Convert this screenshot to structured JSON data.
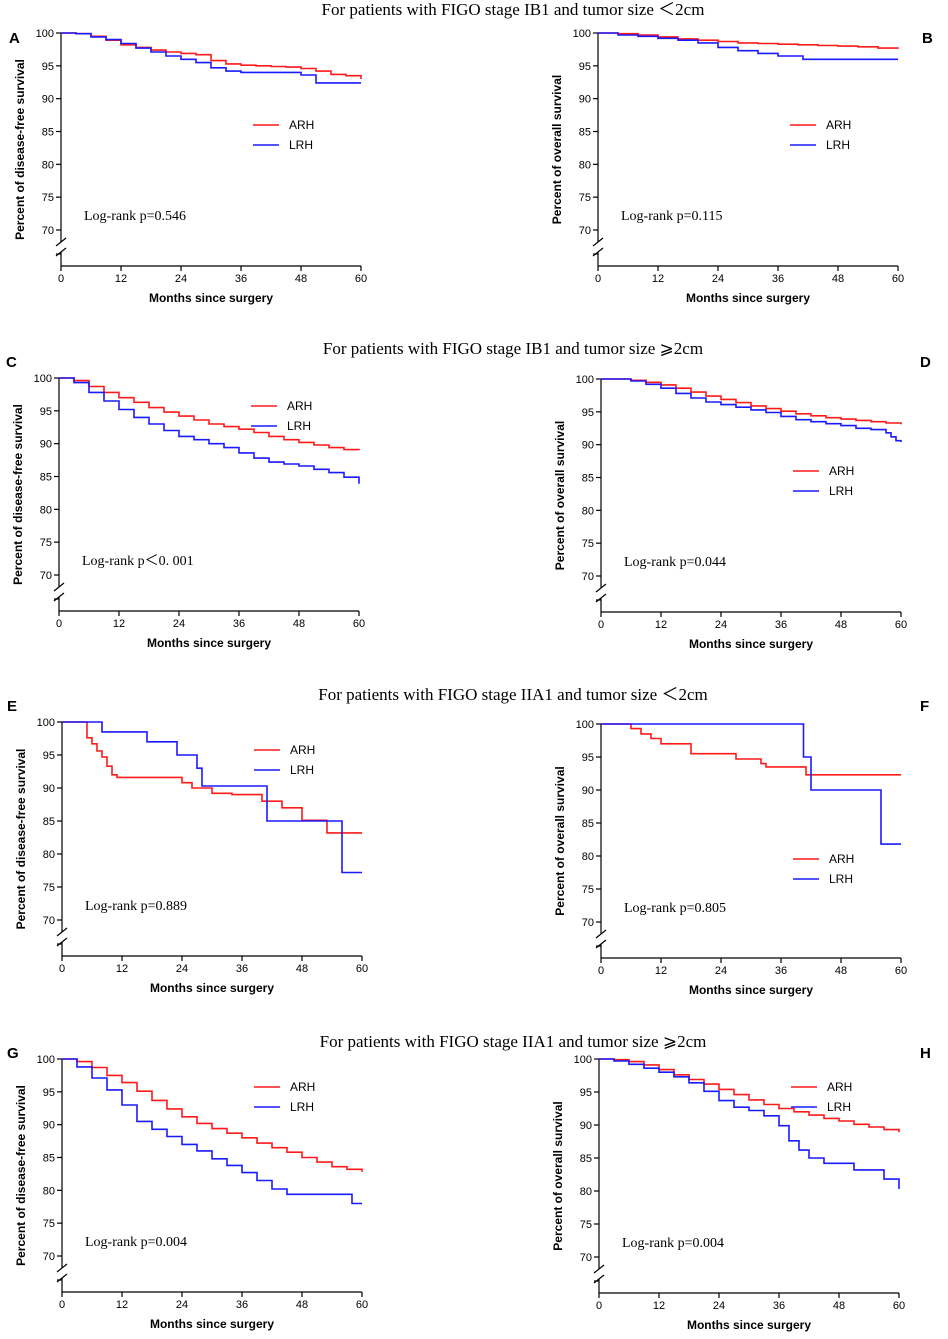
{
  "figure": {
    "row_titles": [
      "For patients with FIGO stage IB1 and tumor size ＜2cm",
      "For patients with FIGO stage IB1 and tumor size ⩾2cm",
      "For patients with FIGO stage IIA1 and tumor size ＜2cm",
      "For patients with FIGO stage IIA1 and tumor size ⩾2cm"
    ],
    "colors": {
      "ARH": "#ff1a1a",
      "LRH": "#1a1aff",
      "axis": "#000000"
    }
  },
  "chart_data": [
    {
      "panel": "A",
      "type": "line",
      "ylabel": "Percent of disease-free survival",
      "xlabel": "Months since surgery",
      "xlim": [
        0,
        60
      ],
      "xticks": [
        0,
        12,
        24,
        36,
        48,
        60
      ],
      "ylim": [
        70,
        100
      ],
      "yticks": [
        70,
        75,
        80,
        85,
        90,
        95,
        100
      ],
      "axis_break": true,
      "legend": [
        "ARH",
        "LRH"
      ],
      "legend_position": "middle-right",
      "annotation": "Log-rank p=0.546",
      "series": [
        {
          "name": "ARH",
          "x": [
            0,
            3,
            6,
            9,
            12,
            15,
            18,
            21,
            24,
            27,
            30,
            33,
            36,
            39,
            42,
            45,
            48,
            51,
            54,
            57,
            60
          ],
          "y": [
            100,
            99.9,
            99.5,
            98.9,
            98.2,
            97.8,
            97.4,
            97.1,
            96.9,
            96.7,
            95.8,
            95.3,
            95.1,
            95.0,
            94.9,
            94.8,
            94.6,
            94.2,
            93.7,
            93.5,
            93.0
          ]
        },
        {
          "name": "LRH",
          "x": [
            0,
            3,
            6,
            9,
            12,
            15,
            18,
            21,
            24,
            27,
            30,
            33,
            36,
            39,
            42,
            45,
            48,
            50,
            51,
            54,
            57,
            60
          ],
          "y": [
            100,
            99.9,
            99.4,
            99.0,
            98.4,
            97.7,
            97.1,
            96.5,
            96.0,
            95.5,
            94.7,
            94.2,
            94.0,
            94.0,
            94.0,
            94.0,
            93.6,
            93.6,
            92.4,
            92.4,
            92.4,
            92.4
          ]
        }
      ]
    },
    {
      "panel": "B",
      "type": "line",
      "ylabel": "Percent of overall survival",
      "xlabel": "Months since surgery",
      "xlim": [
        0,
        60
      ],
      "xticks": [
        0,
        12,
        24,
        36,
        48,
        60
      ],
      "ylim": [
        70,
        100
      ],
      "yticks": [
        70,
        75,
        80,
        85,
        90,
        95,
        100
      ],
      "axis_break": true,
      "legend": [
        "ARH",
        "LRH"
      ],
      "legend_position": "middle-right",
      "annotation": "Log-rank p=0.115",
      "series": [
        {
          "name": "ARH",
          "x": [
            0,
            4,
            8,
            12,
            16,
            20,
            24,
            28,
            32,
            36,
            40,
            44,
            48,
            52,
            56,
            60
          ],
          "y": [
            100,
            99.9,
            99.7,
            99.4,
            99.1,
            98.9,
            98.7,
            98.5,
            98.4,
            98.3,
            98.2,
            98.1,
            98.0,
            97.9,
            97.7,
            97.6
          ]
        },
        {
          "name": "LRH",
          "x": [
            0,
            4,
            8,
            12,
            16,
            20,
            24,
            28,
            32,
            36,
            40,
            41,
            44,
            48,
            52,
            56,
            60
          ],
          "y": [
            100,
            99.7,
            99.5,
            99.2,
            98.9,
            98.5,
            97.8,
            97.3,
            96.9,
            96.5,
            96.5,
            96.0,
            96.0,
            96.0,
            96.0,
            96.0,
            96.0
          ]
        }
      ]
    },
    {
      "panel": "C",
      "type": "line",
      "ylabel": "Percent of disease-free survival",
      "xlabel": "Months since surgery",
      "xlim": [
        0,
        60
      ],
      "xticks": [
        0,
        12,
        24,
        36,
        48,
        60
      ],
      "ylim": [
        70,
        100
      ],
      "yticks": [
        70,
        75,
        80,
        85,
        90,
        95,
        100
      ],
      "axis_break": true,
      "legend": [
        "ARH",
        "LRH"
      ],
      "legend_position": "top-right",
      "annotation": "Log-rank p＜0. 001",
      "series": [
        {
          "name": "ARH",
          "x": [
            0,
            3,
            6,
            9,
            12,
            15,
            18,
            21,
            24,
            27,
            30,
            33,
            36,
            39,
            42,
            45,
            48,
            51,
            54,
            57,
            60
          ],
          "y": [
            100,
            99.6,
            98.7,
            97.8,
            97.0,
            96.3,
            95.5,
            94.8,
            94.2,
            93.6,
            93.0,
            92.6,
            92.2,
            91.7,
            91.1,
            90.6,
            90.2,
            89.8,
            89.4,
            89.1,
            89.0
          ]
        },
        {
          "name": "LRH",
          "x": [
            0,
            3,
            6,
            9,
            12,
            15,
            18,
            21,
            24,
            27,
            30,
            33,
            36,
            39,
            42,
            45,
            48,
            51,
            54,
            57,
            59,
            60
          ],
          "y": [
            100,
            99.3,
            97.8,
            96.5,
            95.2,
            94.0,
            93.0,
            92.0,
            91.1,
            90.6,
            90.0,
            89.4,
            88.6,
            87.8,
            87.2,
            86.9,
            86.6,
            86.1,
            85.6,
            84.9,
            84.9,
            83.9
          ]
        }
      ]
    },
    {
      "panel": "D",
      "type": "line",
      "ylabel": "Percent of overall survival",
      "xlabel": "Months since surgery",
      "xlim": [
        0,
        60
      ],
      "xticks": [
        0,
        12,
        24,
        36,
        48,
        60
      ],
      "ylim": [
        70,
        100
      ],
      "yticks": [
        70,
        75,
        80,
        85,
        90,
        95,
        100
      ],
      "axis_break": true,
      "legend": [
        "ARH",
        "LRH"
      ],
      "legend_position": "middle-right",
      "annotation": "Log-rank p=0.044",
      "series": [
        {
          "name": "ARH",
          "x": [
            0,
            3,
            6,
            9,
            12,
            15,
            18,
            21,
            24,
            27,
            30,
            33,
            36,
            39,
            42,
            45,
            48,
            51,
            54,
            57,
            60
          ],
          "y": [
            100,
            100,
            99.8,
            99.5,
            99.1,
            98.6,
            98.0,
            97.4,
            96.9,
            96.4,
            95.9,
            95.5,
            95.1,
            94.7,
            94.4,
            94.1,
            93.9,
            93.7,
            93.5,
            93.3,
            93.1
          ]
        },
        {
          "name": "LRH",
          "x": [
            0,
            3,
            6,
            9,
            12,
            15,
            18,
            21,
            24,
            27,
            30,
            33,
            36,
            39,
            42,
            45,
            48,
            51,
            54,
            56,
            57,
            58,
            59,
            60
          ],
          "y": [
            100,
            100,
            99.7,
            99.2,
            98.6,
            97.8,
            97.1,
            96.5,
            96.1,
            95.7,
            95.3,
            94.9,
            94.3,
            93.8,
            93.5,
            93.2,
            92.9,
            92.5,
            92.3,
            92.3,
            91.8,
            91.2,
            90.6,
            90.4
          ]
        }
      ]
    },
    {
      "panel": "E",
      "type": "line",
      "ylabel": "Percent of disease-free survival",
      "xlabel": "Months since surgery",
      "xlim": [
        0,
        60
      ],
      "xticks": [
        0,
        12,
        24,
        36,
        48,
        60
      ],
      "ylim": [
        70,
        100
      ],
      "yticks": [
        70,
        75,
        80,
        85,
        90,
        95,
        100
      ],
      "axis_break": true,
      "legend": [
        "ARH",
        "LRH"
      ],
      "legend_position": "top-right",
      "annotation": "Log-rank p=0.889",
      "series": [
        {
          "name": "ARH",
          "x": [
            0,
            5,
            6,
            7,
            8,
            9,
            10,
            11,
            12,
            18,
            24,
            26,
            30,
            34,
            40,
            44,
            48,
            50,
            53,
            60
          ],
          "y": [
            100,
            97.6,
            96.7,
            95.6,
            94.7,
            93.3,
            92.0,
            91.6,
            91.6,
            91.6,
            90.8,
            90.0,
            89.2,
            89.0,
            88.0,
            87.0,
            85.1,
            85.1,
            83.2,
            83.2
          ]
        },
        {
          "name": "LRH",
          "x": [
            0,
            7,
            8,
            16,
            17,
            22,
            23,
            27,
            28,
            35,
            40,
            41,
            55,
            56,
            60
          ],
          "y": [
            100,
            100,
            98.5,
            98.5,
            97.0,
            97.0,
            95.0,
            93.0,
            90.3,
            90.3,
            90.3,
            85.0,
            85.0,
            77.2,
            77.2
          ]
        }
      ]
    },
    {
      "panel": "F",
      "type": "line",
      "ylabel": "Percent of overall survival",
      "xlabel": "Months since surgery",
      "xlim": [
        0,
        60
      ],
      "xticks": [
        0,
        12,
        24,
        36,
        48,
        60
      ],
      "ylim": [
        70,
        100
      ],
      "yticks": [
        70,
        75,
        80,
        85,
        90,
        95,
        100
      ],
      "axis_break": true,
      "legend": [
        "ARH",
        "LRH"
      ],
      "legend_position": "bottom-right",
      "annotation": "Log-rank p=0.805",
      "series": [
        {
          "name": "ARH",
          "x": [
            0,
            6,
            8,
            10,
            12,
            17,
            18,
            24,
            27,
            30,
            32,
            33,
            41,
            44,
            60
          ],
          "y": [
            100,
            99.3,
            98.5,
            97.8,
            97.0,
            97.0,
            95.5,
            95.5,
            94.7,
            94.7,
            94.0,
            93.5,
            92.3,
            92.3,
            92.3
          ]
        },
        {
          "name": "LRH",
          "x": [
            0,
            40,
            40.5,
            41,
            42,
            55,
            56,
            60
          ],
          "y": [
            100,
            100,
            95.0,
            95.0,
            90.0,
            90.0,
            81.8,
            81.8
          ]
        }
      ]
    },
    {
      "panel": "G",
      "type": "line",
      "ylabel": "Percent of disease-free survival",
      "xlabel": "Months since surgery",
      "xlim": [
        0,
        60
      ],
      "xticks": [
        0,
        12,
        24,
        36,
        48,
        60
      ],
      "ylim": [
        70,
        100
      ],
      "yticks": [
        70,
        75,
        80,
        85,
        90,
        95,
        100
      ],
      "axis_break": true,
      "legend": [
        "ARH",
        "LRH"
      ],
      "legend_position": "top-right",
      "annotation": "Log-rank p=0.004",
      "series": [
        {
          "name": "ARH",
          "x": [
            0,
            3,
            6,
            9,
            12,
            15,
            18,
            21,
            24,
            27,
            30,
            33,
            36,
            39,
            42,
            45,
            48,
            51,
            54,
            57,
            60
          ],
          "y": [
            100,
            99.6,
            98.7,
            97.5,
            96.4,
            95.1,
            93.7,
            92.4,
            91.2,
            90.2,
            89.4,
            88.7,
            88.0,
            87.2,
            86.5,
            85.8,
            85.0,
            84.3,
            83.6,
            83.2,
            82.8
          ]
        },
        {
          "name": "LRH",
          "x": [
            0,
            3,
            6,
            9,
            12,
            15,
            18,
            21,
            24,
            27,
            30,
            33,
            36,
            39,
            42,
            45,
            48,
            51,
            54,
            57,
            58,
            60
          ],
          "y": [
            100,
            98.8,
            97.1,
            95.3,
            93.0,
            90.5,
            89.3,
            88.2,
            87.0,
            86.0,
            84.8,
            83.8,
            82.7,
            81.5,
            80.2,
            79.4,
            79.4,
            79.4,
            79.4,
            79.4,
            78.0,
            78.0
          ]
        }
      ]
    },
    {
      "panel": "H",
      "type": "line",
      "ylabel": "Percent of overall survival",
      "xlabel": "Months since surgery",
      "xlim": [
        0,
        60
      ],
      "xticks": [
        0,
        12,
        24,
        36,
        48,
        60
      ],
      "ylim": [
        70,
        100
      ],
      "yticks": [
        70,
        75,
        80,
        85,
        90,
        95,
        100
      ],
      "axis_break": true,
      "legend": [
        "ARH",
        "LRH"
      ],
      "legend_position": "top-right",
      "annotation": "Log-rank p=0.004",
      "series": [
        {
          "name": "ARH",
          "x": [
            0,
            3,
            6,
            9,
            12,
            15,
            18,
            21,
            24,
            27,
            30,
            33,
            36,
            39,
            42,
            45,
            48,
            51,
            54,
            57,
            60
          ],
          "y": [
            100,
            99.9,
            99.6,
            99.1,
            98.4,
            97.6,
            96.9,
            96.2,
            95.4,
            94.6,
            93.8,
            93.1,
            92.5,
            92.0,
            91.5,
            91.0,
            90.6,
            90.1,
            89.7,
            89.3,
            88.9
          ]
        },
        {
          "name": "LRH",
          "x": [
            0,
            3,
            6,
            9,
            12,
            15,
            18,
            21,
            24,
            27,
            30,
            33,
            36,
            38,
            40,
            42,
            45,
            48,
            51,
            54,
            57,
            59,
            60
          ],
          "y": [
            100,
            99.7,
            99.2,
            98.6,
            98.0,
            97.3,
            96.4,
            95.1,
            93.7,
            92.7,
            92.2,
            91.4,
            89.9,
            87.6,
            86.2,
            85.0,
            84.2,
            84.2,
            83.2,
            83.2,
            81.8,
            81.8,
            80.3
          ]
        }
      ]
    }
  ]
}
